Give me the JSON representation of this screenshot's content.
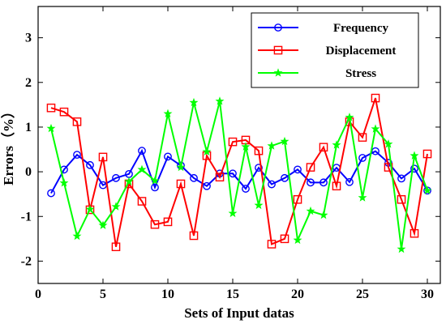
{
  "chart_data": {
    "type": "line",
    "title": "",
    "xlabel": "Sets of Input datas",
    "ylabel": "Errors（%）",
    "xlim": [
      0,
      31
    ],
    "ylim": [
      -2.5,
      3.7
    ],
    "xticks": [
      0,
      5,
      10,
      15,
      20,
      25,
      30
    ],
    "yticks": [
      -2,
      -1,
      0,
      1,
      2,
      3
    ],
    "grid": false,
    "legend_position": "top-right",
    "x": [
      1,
      2,
      3,
      4,
      5,
      6,
      7,
      8,
      9,
      10,
      11,
      12,
      13,
      14,
      15,
      16,
      17,
      18,
      19,
      20,
      21,
      22,
      23,
      24,
      25,
      26,
      27,
      28,
      29,
      30
    ],
    "series": [
      {
        "name": "Frequency",
        "color": "#0000ff",
        "marker": "circle",
        "values": [
          -0.48,
          0.05,
          0.38,
          0.15,
          -0.3,
          -0.14,
          -0.05,
          0.47,
          -0.35,
          0.34,
          0.14,
          -0.14,
          -0.32,
          -0.04,
          -0.04,
          -0.38,
          0.09,
          -0.28,
          -0.14,
          0.05,
          -0.24,
          -0.24,
          0.09,
          -0.23,
          0.31,
          0.46,
          0.2,
          -0.15,
          0.07,
          -0.42
        ]
      },
      {
        "name": "Displacement",
        "color": "#ff0000",
        "marker": "square",
        "values": [
          1.43,
          1.34,
          1.12,
          -0.85,
          0.33,
          -1.68,
          -0.27,
          -0.66,
          -1.18,
          -1.12,
          -0.27,
          -1.43,
          0.36,
          -0.12,
          0.67,
          0.71,
          0.47,
          -1.62,
          -1.5,
          -0.62,
          0.1,
          0.55,
          -0.32,
          1.12,
          0.77,
          1.65,
          0.1,
          -0.62,
          -1.38,
          0.4
        ]
      },
      {
        "name": "Stress",
        "color": "#00ff00",
        "marker": "star",
        "values": [
          0.97,
          -0.25,
          -1.44,
          -0.84,
          -1.2,
          -0.78,
          -0.22,
          0.05,
          -0.2,
          1.3,
          0.1,
          1.55,
          0.45,
          1.58,
          -0.93,
          0.56,
          -0.75,
          0.58,
          0.68,
          -1.53,
          -0.88,
          -0.97,
          0.6,
          1.22,
          -0.58,
          0.96,
          0.62,
          -1.73,
          0.36,
          -0.42
        ]
      }
    ]
  }
}
